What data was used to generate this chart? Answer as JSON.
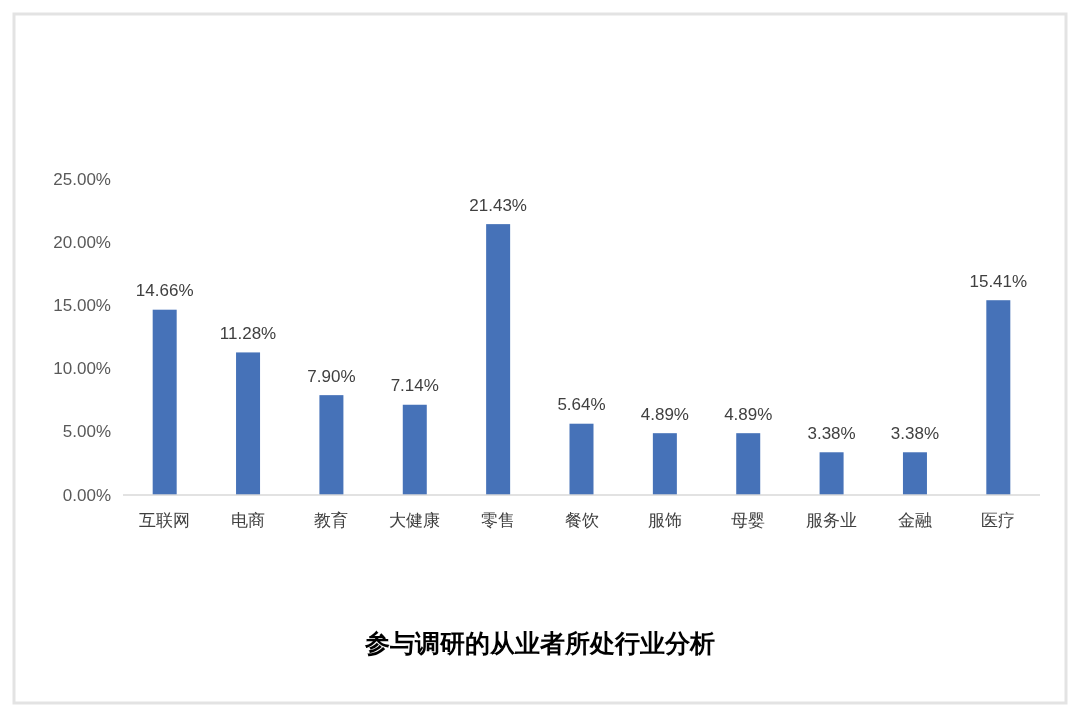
{
  "chart_data": {
    "type": "bar",
    "title": "参与调研的从业者所处行业分析",
    "categories": [
      "互联网",
      "电商",
      "教育",
      "大健康",
      "零售",
      "餐饮",
      "服饰",
      "母婴",
      "服务业",
      "金融",
      "医疗"
    ],
    "values": [
      14.66,
      11.28,
      7.9,
      7.14,
      21.43,
      5.64,
      4.89,
      4.89,
      3.38,
      3.38,
      15.41
    ],
    "value_labels": [
      "14.66%",
      "11.28%",
      "7.90%",
      "7.14%",
      "21.43%",
      "5.64%",
      "4.89%",
      "4.89%",
      "3.38%",
      "3.38%",
      "15.41%"
    ],
    "color": "#4672b8",
    "ylim": [
      0,
      25
    ],
    "yticks": [
      {
        "value": 0,
        "label": "0.00%"
      },
      {
        "value": 5,
        "label": "5.00%"
      },
      {
        "value": 10,
        "label": "10.00%"
      },
      {
        "value": 15,
        "label": "15.00%"
      },
      {
        "value": 20,
        "label": "20.00%"
      },
      {
        "value": 25,
        "label": "25.00%"
      }
    ]
  }
}
